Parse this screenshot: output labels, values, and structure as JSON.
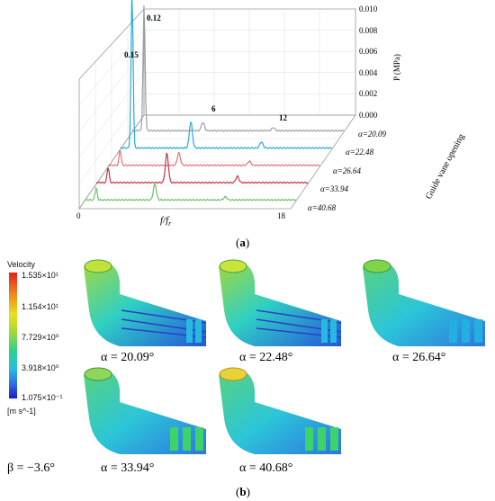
{
  "panel_a": {
    "label_open": "(",
    "label_letter": "a",
    "label_close": ")",
    "zaxis_label": "P (MPa)",
    "zaxis_ticks": [
      "0.010",
      "0.008",
      "0.006",
      "0.004",
      "0.002",
      "0.000"
    ],
    "xaxis_label": "f/f",
    "xaxis_sub": "r",
    "xaxis_ticks": [
      "0",
      "18"
    ],
    "depth_axis_label": "Guide vane opening",
    "annotations": [
      "0.12",
      "0.15",
      "6",
      "12"
    ],
    "colors": {
      "alpha_20_09": "#9aa0a6",
      "alpha_22_48": "#2aa9d8",
      "alpha_26_64": "#e0737f",
      "alpha_33_94": "#c0394a",
      "alpha_40_68": "#6cc06a"
    }
  },
  "chart_data": {
    "type": "line",
    "title": "",
    "xlabel": "f/fr",
    "ylabel": "P (MPa)",
    "xlim": [
      0,
      18
    ],
    "ylim": [
      0,
      0.01
    ],
    "series": [
      {
        "name": "α=20.09",
        "peaks": [
          {
            "x": 1,
            "y": 0.012
          },
          {
            "x": 6,
            "y": 0.0008
          },
          {
            "x": 12,
            "y": 0.0003
          }
        ]
      },
      {
        "name": "α=22.48",
        "peaks": [
          {
            "x": 1,
            "y": 0.015
          },
          {
            "x": 6,
            "y": 0.0025
          },
          {
            "x": 12,
            "y": 0.0006
          }
        ]
      },
      {
        "name": "α=26.64",
        "peaks": [
          {
            "x": 1,
            "y": 0.0015
          },
          {
            "x": 6,
            "y": 0.0012
          },
          {
            "x": 12,
            "y": 0.0004
          }
        ]
      },
      {
        "name": "α=33.94",
        "peaks": [
          {
            "x": 1,
            "y": 0.0015
          },
          {
            "x": 6,
            "y": 0.0028
          },
          {
            "x": 12,
            "y": 0.0006
          }
        ]
      },
      {
        "name": "α=40.68",
        "peaks": [
          {
            "x": 1,
            "y": 0.0012
          },
          {
            "x": 6,
            "y": 0.0015
          },
          {
            "x": 12,
            "y": 0.0003
          }
        ]
      }
    ],
    "series_labels": [
      "α=20.09",
      "α=22.48",
      "α=26.64",
      "α=33.94",
      "α=40.68"
    ]
  },
  "panel_b": {
    "label_open": "(",
    "label_letter": "b",
    "label_close": ")",
    "colorbar": {
      "title": "Velocity",
      "ticks": [
        "1.535×10¹",
        "1.154×10¹",
        "7.729×10⁰",
        "3.918×10⁰",
        "1.075×10⁻¹"
      ],
      "unit": "[m s^-1]"
    },
    "beta": "β = −3.6°",
    "angles": [
      "α = 20.09°",
      "α = 22.48°",
      "α = 26.64°",
      "α = 33.94°",
      "α = 40.68°"
    ]
  }
}
